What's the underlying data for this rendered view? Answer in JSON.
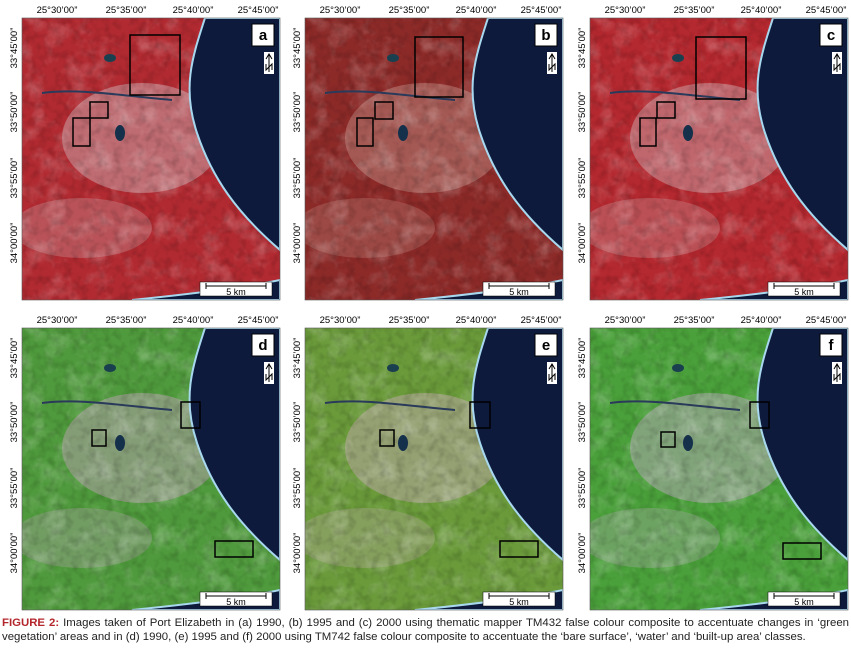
{
  "panels": [
    {
      "label": "a",
      "scale": "5 km",
      "x_labels": [
        "25°30’00”",
        "25°35’00”",
        "25°40’00”",
        "25°45’00”"
      ],
      "y_labels": [
        "33°45’00”",
        "33°50’00”",
        "33°55’00”",
        "34°00’00”"
      ]
    },
    {
      "label": "b",
      "scale": "5 km",
      "x_labels": [
        "25°30’00”",
        "25°35’00”",
        "25°40’00”",
        "25°45’00”"
      ],
      "y_labels": [
        "33°45’00”",
        "33°50’00”",
        "33°55’00”",
        "34°00’00”"
      ]
    },
    {
      "label": "c",
      "scale": "5 km",
      "x_labels": [
        "25°30’00”",
        "25°35’00”",
        "25°40’00”",
        "25°45’00”"
      ],
      "y_labels": [
        "33°45’00”",
        "33°50’00”",
        "33°55’00”",
        "34°00’00”"
      ]
    },
    {
      "label": "d",
      "scale": "5 km",
      "x_labels": [
        "25°30’00”",
        "25°35’00”",
        "25°40’00”",
        "25°45’00”"
      ],
      "y_labels": [
        "33°45’00”",
        "33°50’00”",
        "33°55’00”",
        "34°00’00”"
      ]
    },
    {
      "label": "e",
      "scale": "5 km",
      "x_labels": [
        "25°30’00”",
        "25°35’00”",
        "25°40’00”",
        "25°45’00”"
      ],
      "y_labels": [
        "33°45’00”",
        "33°50’00”",
        "33°55’00”",
        "34°00’00”"
      ]
    },
    {
      "label": "f",
      "scale": "5 km",
      "x_labels": [
        "25°30’00”",
        "25°35’00”",
        "25°40’00”",
        "25°45’00”"
      ],
      "y_labels": [
        "33°45’00”",
        "33°50’00”",
        "33°55’00”",
        "34°00’00”"
      ]
    }
  ],
  "caption": {
    "label": "FIGURE 2:",
    "text": "Images taken of Port Elizabeth in (a) 1990, (b) 1995 and (c) 2000 using thematic mapper TM432 false colour composite to accentuate changes in ‘green vegetation’ areas and in (d) 1990, (e) 1995 and (f) 2000 using TM742 false colour composite to accentuate the ‘bare surface’, ‘water’ and ‘built-up area’ classes."
  }
}
